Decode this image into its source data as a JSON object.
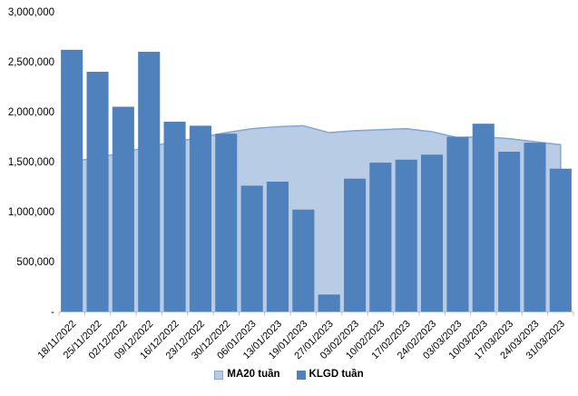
{
  "chart_data": {
    "type": "combo-area-bar",
    "title": "",
    "xlabel": "",
    "ylabel": "",
    "grid": false,
    "background": "#ffffff",
    "axis_color": "#bfbfbf",
    "text_color": "#000000",
    "categories": [
      "18/11/2022",
      "25/11/2022",
      "02/12/2022",
      "09/12/2022",
      "16/12/2022",
      "23/12/2022",
      "30/12/2022",
      "06/01/2023",
      "13/01/2023",
      "19/01/2023",
      "27/01/2023",
      "03/02/2023",
      "10/02/2023",
      "17/02/2023",
      "24/02/2023",
      "03/03/2023",
      "10/03/2023",
      "17/03/2023",
      "24/03/2023",
      "31/03/2023"
    ],
    "series": [
      {
        "name": "MA20 tuần",
        "type": "area",
        "fill_color": "#b9cce5",
        "line_color": "#85a8d8",
        "values": [
          1500000,
          1540000,
          1590000,
          1650000,
          1700000,
          1740000,
          1790000,
          1830000,
          1850000,
          1860000,
          1790000,
          1810000,
          1820000,
          1830000,
          1800000,
          1740000,
          1750000,
          1730000,
          1700000,
          1670000
        ]
      },
      {
        "name": "KLGD tuần",
        "type": "bar",
        "fill_color": "#4f81bd",
        "values": [
          2620000,
          2400000,
          2050000,
          2600000,
          1900000,
          1860000,
          1780000,
          1260000,
          1300000,
          1020000,
          170000,
          1330000,
          1490000,
          1520000,
          1570000,
          1750000,
          1880000,
          1600000,
          1690000,
          1430000
        ]
      }
    ],
    "y_axis": {
      "min": 0,
      "max": 3000000,
      "tick_interval": 500000,
      "tick_labels": [
        "-",
        "500,000",
        "1,000,000",
        "1,500,000",
        "2,000,000",
        "2,500,000",
        "3,000,000"
      ]
    },
    "legend": {
      "position": "bottom",
      "items": [
        {
          "label": "MA20 tuần",
          "swatch_fill": "#b9cce5",
          "swatch_border": "#85a8d8"
        },
        {
          "label": "KLGD tuần",
          "swatch_fill": "#4f81bd",
          "swatch_border": "#4f81bd"
        }
      ]
    }
  }
}
